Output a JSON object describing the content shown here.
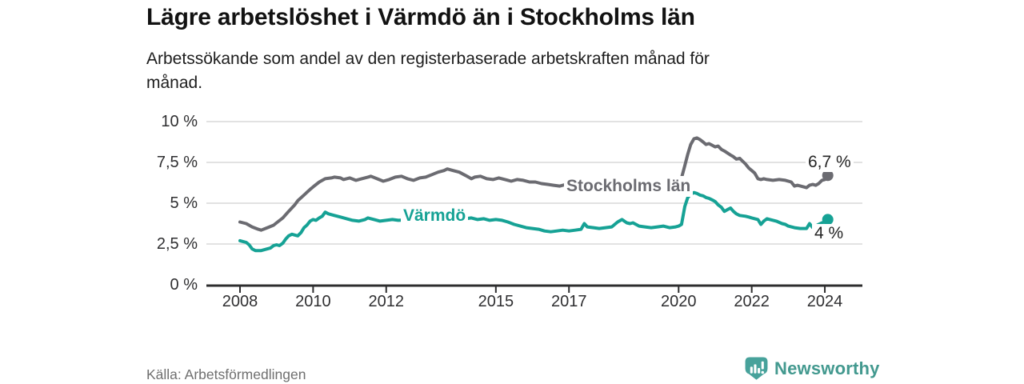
{
  "header": {
    "title": "Lägre arbetslöshet i Värmdö än i Stockholms län",
    "subtitle": "Arbetssökande som andel av den registerbaserade arbetskraften månad för månad."
  },
  "footer": {
    "source": "Källa: Arbetsförmedlingen",
    "brand": "Newsworthy"
  },
  "colors": {
    "varmdo": "#16a295",
    "stockholm": "#6b6b71",
    "grid": "#d9d9d9",
    "axis": "#2d2d2e",
    "tick_text": "#2f2f31",
    "title_text": "#121212",
    "end_label_text": "#242424",
    "source_text": "#6f6f6f",
    "brand_icon": "#47a29b",
    "brand_text": "#43998f"
  },
  "chart_data": {
    "type": "line",
    "title": "Lägre arbetslöshet i Värmdö än i Stockholms län",
    "subtitle": "Arbetssökande som andel av den registerbaserade arbetskraften månad för månad.",
    "source": "Källa: Arbetsförmedlingen",
    "grid": true,
    "legend_position": "inline-labels",
    "x_axis": {
      "ticks": [
        2008,
        2010,
        2012,
        2015,
        2017,
        2020,
        2022,
        2024
      ],
      "range": [
        2007.1,
        2025.0
      ]
    },
    "y_axis": {
      "unit": "%",
      "range": [
        0,
        10
      ],
      "ticks": [
        {
          "value": 0,
          "label": "0 %"
        },
        {
          "value": 2.5,
          "label": "2,5 %"
        },
        {
          "value": 5,
          "label": "5 %"
        },
        {
          "value": 7.5,
          "label": "7,5 %"
        },
        {
          "value": 10,
          "label": "10 %"
        }
      ]
    },
    "series": [
      {
        "id": "stockholms-lan",
        "name": "Stockholms län",
        "color": "#6b6b71",
        "end_label": "6,7 %",
        "end_value": 6.7,
        "points": [
          [
            2008.0,
            3.85
          ],
          [
            2008.17,
            3.75
          ],
          [
            2008.33,
            3.55
          ],
          [
            2008.5,
            3.4
          ],
          [
            2008.58,
            3.35
          ],
          [
            2008.75,
            3.5
          ],
          [
            2008.92,
            3.65
          ],
          [
            2009.0,
            3.8
          ],
          [
            2009.17,
            4.1
          ],
          [
            2009.33,
            4.5
          ],
          [
            2009.5,
            4.9
          ],
          [
            2009.58,
            5.15
          ],
          [
            2009.75,
            5.5
          ],
          [
            2009.92,
            5.85
          ],
          [
            2010.0,
            6.0
          ],
          [
            2010.17,
            6.3
          ],
          [
            2010.33,
            6.5
          ],
          [
            2010.5,
            6.55
          ],
          [
            2010.58,
            6.6
          ],
          [
            2010.75,
            6.55
          ],
          [
            2010.83,
            6.45
          ],
          [
            2011.0,
            6.55
          ],
          [
            2011.17,
            6.4
          ],
          [
            2011.33,
            6.5
          ],
          [
            2011.5,
            6.6
          ],
          [
            2011.58,
            6.65
          ],
          [
            2011.75,
            6.5
          ],
          [
            2011.92,
            6.35
          ],
          [
            2012.08,
            6.45
          ],
          [
            2012.25,
            6.6
          ],
          [
            2012.42,
            6.65
          ],
          [
            2012.58,
            6.5
          ],
          [
            2012.75,
            6.4
          ],
          [
            2012.92,
            6.55
          ],
          [
            2013.08,
            6.6
          ],
          [
            2013.25,
            6.75
          ],
          [
            2013.42,
            6.9
          ],
          [
            2013.58,
            7.0
          ],
          [
            2013.67,
            7.1
          ],
          [
            2013.83,
            7.0
          ],
          [
            2014.0,
            6.9
          ],
          [
            2014.17,
            6.7
          ],
          [
            2014.33,
            6.5
          ],
          [
            2014.42,
            6.6
          ],
          [
            2014.58,
            6.65
          ],
          [
            2014.75,
            6.5
          ],
          [
            2014.92,
            6.45
          ],
          [
            2015.08,
            6.55
          ],
          [
            2015.25,
            6.45
          ],
          [
            2015.42,
            6.35
          ],
          [
            2015.58,
            6.45
          ],
          [
            2015.75,
            6.4
          ],
          [
            2015.92,
            6.3
          ],
          [
            2016.08,
            6.3
          ],
          [
            2016.25,
            6.2
          ],
          [
            2016.42,
            6.15
          ],
          [
            2016.58,
            6.1
          ],
          [
            2016.75,
            6.05
          ],
          [
            2016.92,
            6.15
          ],
          [
            2017.08,
            6.2
          ],
          [
            2017.5,
            6.25
          ],
          [
            2018.0,
            6.3
          ],
          [
            2018.5,
            6.25
          ],
          [
            2019.0,
            6.3
          ],
          [
            2019.5,
            6.35
          ],
          [
            2019.92,
            6.5
          ],
          [
            2020.08,
            6.55
          ],
          [
            2020.17,
            7.3
          ],
          [
            2020.25,
            8.0
          ],
          [
            2020.33,
            8.6
          ],
          [
            2020.42,
            8.95
          ],
          [
            2020.5,
            9.0
          ],
          [
            2020.58,
            8.9
          ],
          [
            2020.67,
            8.75
          ],
          [
            2020.75,
            8.6
          ],
          [
            2020.83,
            8.65
          ],
          [
            2020.92,
            8.55
          ],
          [
            2021.0,
            8.45
          ],
          [
            2021.08,
            8.5
          ],
          [
            2021.17,
            8.3
          ],
          [
            2021.25,
            8.2
          ],
          [
            2021.42,
            7.95
          ],
          [
            2021.5,
            7.85
          ],
          [
            2021.58,
            7.7
          ],
          [
            2021.67,
            7.75
          ],
          [
            2021.83,
            7.4
          ],
          [
            2021.92,
            7.15
          ],
          [
            2022.0,
            7.0
          ],
          [
            2022.08,
            6.85
          ],
          [
            2022.17,
            6.5
          ],
          [
            2022.25,
            6.45
          ],
          [
            2022.33,
            6.5
          ],
          [
            2022.42,
            6.45
          ],
          [
            2022.58,
            6.4
          ],
          [
            2022.75,
            6.45
          ],
          [
            2022.92,
            6.4
          ],
          [
            2023.08,
            6.3
          ],
          [
            2023.17,
            6.05
          ],
          [
            2023.25,
            6.1
          ],
          [
            2023.42,
            6.0
          ],
          [
            2023.5,
            5.95
          ],
          [
            2023.58,
            6.1
          ],
          [
            2023.67,
            6.15
          ],
          [
            2023.75,
            6.1
          ],
          [
            2023.83,
            6.2
          ],
          [
            2023.92,
            6.4
          ],
          [
            2024.0,
            6.45
          ],
          [
            2024.08,
            6.7
          ]
        ]
      },
      {
        "id": "varmdo",
        "name": "Värmdö",
        "color": "#16a295",
        "end_label": "4 %",
        "end_value": 4.0,
        "points": [
          [
            2008.0,
            2.7
          ],
          [
            2008.08,
            2.65
          ],
          [
            2008.17,
            2.6
          ],
          [
            2008.25,
            2.45
          ],
          [
            2008.33,
            2.2
          ],
          [
            2008.42,
            2.1
          ],
          [
            2008.58,
            2.1
          ],
          [
            2008.67,
            2.15
          ],
          [
            2008.83,
            2.25
          ],
          [
            2008.92,
            2.4
          ],
          [
            2009.0,
            2.45
          ],
          [
            2009.08,
            2.4
          ],
          [
            2009.17,
            2.55
          ],
          [
            2009.25,
            2.8
          ],
          [
            2009.33,
            3.0
          ],
          [
            2009.42,
            3.1
          ],
          [
            2009.5,
            3.05
          ],
          [
            2009.58,
            3.0
          ],
          [
            2009.67,
            3.2
          ],
          [
            2009.75,
            3.5
          ],
          [
            2009.83,
            3.65
          ],
          [
            2009.92,
            3.9
          ],
          [
            2010.0,
            4.0
          ],
          [
            2010.08,
            3.95
          ],
          [
            2010.17,
            4.1
          ],
          [
            2010.25,
            4.2
          ],
          [
            2010.33,
            4.45
          ],
          [
            2010.42,
            4.35
          ],
          [
            2010.58,
            4.25
          ],
          [
            2010.75,
            4.15
          ],
          [
            2010.92,
            4.05
          ],
          [
            2011.08,
            3.95
          ],
          [
            2011.25,
            3.9
          ],
          [
            2011.42,
            4.0
          ],
          [
            2011.5,
            4.1
          ],
          [
            2011.67,
            4.0
          ],
          [
            2011.83,
            3.9
          ],
          [
            2012.0,
            3.95
          ],
          [
            2012.17,
            4.0
          ],
          [
            2012.33,
            3.95
          ],
          [
            2012.75,
            4.0
          ],
          [
            2013.0,
            3.95
          ],
          [
            2013.25,
            4.0
          ],
          [
            2013.5,
            4.05
          ],
          [
            2013.67,
            4.2
          ],
          [
            2013.83,
            4.1
          ],
          [
            2014.0,
            4.15
          ],
          [
            2014.17,
            4.05
          ],
          [
            2014.33,
            4.1
          ],
          [
            2014.5,
            4.0
          ],
          [
            2014.67,
            4.05
          ],
          [
            2014.83,
            3.95
          ],
          [
            2015.0,
            4.0
          ],
          [
            2015.17,
            3.95
          ],
          [
            2015.33,
            3.85
          ],
          [
            2015.5,
            3.7
          ],
          [
            2015.67,
            3.6
          ],
          [
            2015.83,
            3.5
          ],
          [
            2016.0,
            3.45
          ],
          [
            2016.17,
            3.4
          ],
          [
            2016.33,
            3.3
          ],
          [
            2016.5,
            3.25
          ],
          [
            2016.67,
            3.3
          ],
          [
            2016.83,
            3.35
          ],
          [
            2017.0,
            3.3
          ],
          [
            2017.17,
            3.35
          ],
          [
            2017.33,
            3.4
          ],
          [
            2017.42,
            3.75
          ],
          [
            2017.5,
            3.55
          ],
          [
            2017.67,
            3.5
          ],
          [
            2017.83,
            3.45
          ],
          [
            2018.0,
            3.5
          ],
          [
            2018.17,
            3.55
          ],
          [
            2018.33,
            3.85
          ],
          [
            2018.45,
            4.0
          ],
          [
            2018.58,
            3.8
          ],
          [
            2018.67,
            3.75
          ],
          [
            2018.75,
            3.8
          ],
          [
            2018.92,
            3.6
          ],
          [
            2019.08,
            3.55
          ],
          [
            2019.25,
            3.5
          ],
          [
            2019.42,
            3.55
          ],
          [
            2019.58,
            3.6
          ],
          [
            2019.75,
            3.5
          ],
          [
            2019.92,
            3.55
          ],
          [
            2020.0,
            3.6
          ],
          [
            2020.08,
            3.7
          ],
          [
            2020.17,
            4.8
          ],
          [
            2020.25,
            5.35
          ],
          [
            2020.33,
            5.55
          ],
          [
            2020.42,
            5.65
          ],
          [
            2020.5,
            5.6
          ],
          [
            2020.58,
            5.5
          ],
          [
            2020.67,
            5.45
          ],
          [
            2020.75,
            5.35
          ],
          [
            2020.83,
            5.3
          ],
          [
            2020.92,
            5.2
          ],
          [
            2021.0,
            5.1
          ],
          [
            2021.08,
            4.9
          ],
          [
            2021.17,
            4.75
          ],
          [
            2021.25,
            4.5
          ],
          [
            2021.33,
            4.6
          ],
          [
            2021.42,
            4.7
          ],
          [
            2021.5,
            4.5
          ],
          [
            2021.58,
            4.35
          ],
          [
            2021.67,
            4.25
          ],
          [
            2021.83,
            4.2
          ],
          [
            2021.92,
            4.15
          ],
          [
            2022.0,
            4.1
          ],
          [
            2022.17,
            4.0
          ],
          [
            2022.25,
            3.7
          ],
          [
            2022.33,
            3.9
          ],
          [
            2022.42,
            4.05
          ],
          [
            2022.5,
            4.0
          ],
          [
            2022.67,
            3.9
          ],
          [
            2022.83,
            3.75
          ],
          [
            2022.92,
            3.7
          ],
          [
            2023.0,
            3.6
          ],
          [
            2023.17,
            3.5
          ],
          [
            2023.33,
            3.45
          ],
          [
            2023.5,
            3.45
          ],
          [
            2023.58,
            3.75
          ],
          [
            2023.67,
            3.5
          ],
          [
            2023.75,
            3.6
          ],
          [
            2023.83,
            3.7
          ],
          [
            2023.92,
            3.8
          ],
          [
            2024.0,
            3.85
          ],
          [
            2024.08,
            4.0
          ]
        ]
      }
    ]
  }
}
